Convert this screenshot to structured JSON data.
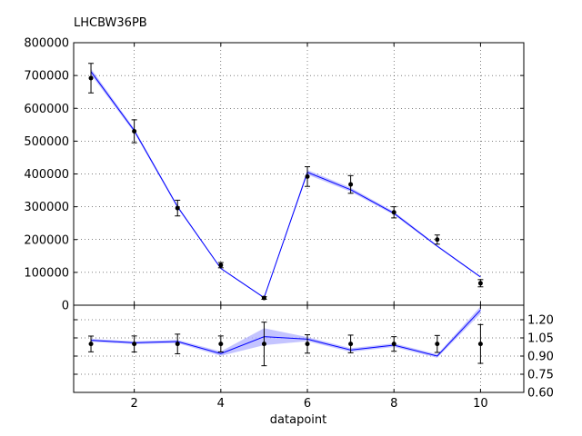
{
  "chart_data": [
    {
      "type": "line",
      "title": "LHCBW36PB",
      "xlabel": "",
      "ylabel": "",
      "xlim": [
        0.6,
        11.0
      ],
      "ylim": [
        0,
        800000
      ],
      "grid": true,
      "xticks": [
        2,
        4,
        6,
        8,
        10
      ],
      "xtick_labels_visible": false,
      "yticks": [
        0,
        100000,
        200000,
        300000,
        400000,
        500000,
        600000,
        700000,
        800000
      ],
      "ytick_labels": [
        "0",
        "100000",
        "200000",
        "300000",
        "400000",
        "500000",
        "600000",
        "700000",
        "800000"
      ],
      "data_points": {
        "style": "errorbar",
        "color": "#000000",
        "x": [
          1,
          2,
          3,
          4,
          5,
          6,
          7,
          8,
          9,
          10
        ],
        "y": [
          692000,
          530000,
          296000,
          122000,
          22000,
          392000,
          368000,
          283000,
          200000,
          67000
        ],
        "err": [
          45000,
          35000,
          24000,
          8000,
          4000,
          30000,
          27000,
          17000,
          14000,
          11000
        ]
      },
      "prediction": {
        "style": "line-with-band",
        "color": "#0000ff",
        "band_color": "#b0b0ff",
        "x": [
          1,
          2,
          3,
          4,
          5,
          6,
          7,
          8,
          9,
          10
        ],
        "y": [
          712000,
          532000,
          300000,
          112000,
          23000,
          405000,
          352000,
          280000,
          180000,
          86000
        ],
        "band_halfwidth": [
          9000,
          6000,
          4000,
          2000,
          1500,
          7000,
          6000,
          5000,
          3000,
          2000
        ]
      }
    },
    {
      "type": "line",
      "title": "",
      "xlabel": "datapoint",
      "ylabel": "",
      "xlim": [
        0.6,
        11.0
      ],
      "ylim": [
        0.6,
        1.32
      ],
      "grid": true,
      "xticks": [
        2,
        4,
        6,
        8,
        10
      ],
      "xtick_labels": [
        "2",
        "4",
        "6",
        "8",
        "10"
      ],
      "yticks": [
        0.6,
        0.75,
        0.9,
        1.05,
        1.2
      ],
      "ytick_labels": [
        "0.60",
        "0.75",
        "0.90",
        "1.05",
        "1.20"
      ],
      "ytick_side": "right",
      "data_points": {
        "style": "errorbar",
        "color": "#000000",
        "x": [
          1,
          2,
          3,
          4,
          5,
          6,
          7,
          8,
          9,
          10
        ],
        "y": [
          1.0,
          1.0,
          1.0,
          1.0,
          1.0,
          1.0,
          1.0,
          1.0,
          1.0,
          1.0
        ],
        "err": [
          0.065,
          0.066,
          0.081,
          0.066,
          0.18,
          0.076,
          0.073,
          0.06,
          0.07,
          0.16
        ]
      },
      "prediction": {
        "style": "line-with-band",
        "color": "#0000ff",
        "band_color": "#b0b0ff",
        "x": [
          1,
          2,
          3,
          4,
          5,
          6,
          7,
          8,
          9,
          10
        ],
        "y": [
          1.03,
          1.01,
          1.02,
          0.92,
          1.06,
          1.04,
          0.95,
          0.99,
          0.9,
          1.28
        ],
        "band_halfwidth": [
          0.012,
          0.012,
          0.013,
          0.018,
          0.07,
          0.017,
          0.015,
          0.015,
          0.014,
          0.03
        ]
      }
    }
  ]
}
